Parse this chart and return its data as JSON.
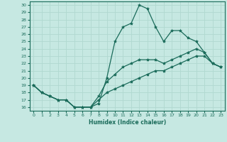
{
  "xlabel": "Humidex (Indice chaleur)",
  "xlim": [
    -0.5,
    23.5
  ],
  "ylim": [
    15.5,
    30.5
  ],
  "xticks": [
    0,
    1,
    2,
    3,
    4,
    5,
    6,
    7,
    8,
    9,
    10,
    11,
    12,
    13,
    14,
    15,
    16,
    17,
    18,
    19,
    20,
    21,
    22,
    23
  ],
  "yticks": [
    16,
    17,
    18,
    19,
    20,
    21,
    22,
    23,
    24,
    25,
    26,
    27,
    28,
    29,
    30
  ],
  "line_color": "#1a6b5a",
  "bg_color": "#c6e8e2",
  "grid_color": "#b0d8d0",
  "lines": [
    {
      "x": [
        0,
        1,
        2,
        3,
        4,
        5,
        6,
        7,
        8,
        9,
        10,
        11,
        12,
        13,
        14,
        15,
        16,
        17,
        18,
        19,
        20,
        21,
        22,
        23
      ],
      "y": [
        19,
        18,
        17.5,
        17,
        17,
        16,
        16,
        16,
        16.5,
        20,
        25,
        27,
        27.5,
        30,
        29.5,
        27,
        25,
        26.5,
        26.5,
        25.5,
        25,
        23.5,
        22,
        21.5
      ]
    },
    {
      "x": [
        0,
        1,
        2,
        3,
        4,
        5,
        6,
        7,
        8,
        9,
        10,
        11,
        12,
        13,
        14,
        15,
        16,
        17,
        18,
        19,
        20,
        21,
        22,
        23
      ],
      "y": [
        19,
        18,
        17.5,
        17,
        17,
        16,
        16,
        16,
        17.5,
        19.5,
        20.5,
        21.5,
        22,
        22.5,
        22.5,
        22.5,
        22,
        22.5,
        23,
        23.5,
        24,
        23.5,
        22,
        21.5
      ]
    },
    {
      "x": [
        0,
        1,
        2,
        3,
        4,
        5,
        6,
        7,
        8,
        9,
        10,
        11,
        12,
        13,
        14,
        15,
        16,
        17,
        18,
        19,
        20,
        21,
        22,
        23
      ],
      "y": [
        19,
        18,
        17.5,
        17,
        17,
        16,
        16,
        16,
        17,
        18,
        18.5,
        19,
        19.5,
        20,
        20.5,
        21,
        21,
        21.5,
        22,
        22.5,
        23,
        23,
        22,
        21.5
      ]
    }
  ]
}
